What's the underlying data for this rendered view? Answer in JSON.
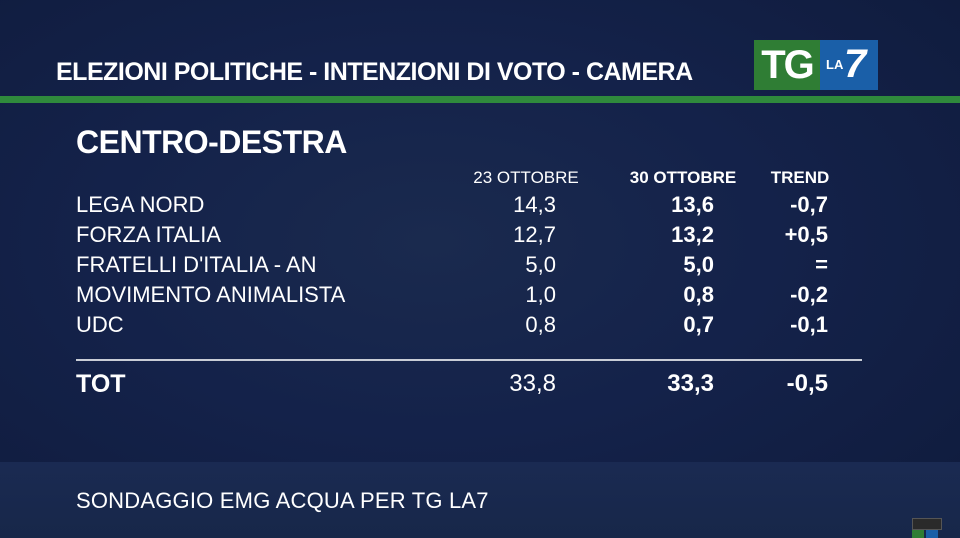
{
  "header": {
    "title": "ELEZIONI POLITICHE - INTENZIONI DI VOTO - CAMERA",
    "logo_tg": "TG",
    "logo_la": "LA",
    "logo_seven": "7"
  },
  "section_title": "CENTRO-DESTRA",
  "columns": {
    "date1": "23 OTTOBRE",
    "date2": "30 OTTOBRE",
    "trend": "TREND"
  },
  "rows": [
    {
      "party": "LEGA NORD",
      "v1": "14,3",
      "v2": "13,6",
      "trend": "-0,7"
    },
    {
      "party": "FORZA ITALIA",
      "v1": "12,7",
      "v2": "13,2",
      "trend": "+0,5"
    },
    {
      "party": "FRATELLI D'ITALIA - AN",
      "v1": "5,0",
      "v2": "5,0",
      "trend": "="
    },
    {
      "party": "MOVIMENTO ANIMALISTA",
      "v1": "1,0",
      "v2": "0,8",
      "trend": "-0,2"
    },
    {
      "party": "UDC",
      "v1": "0,8",
      "v2": "0,7",
      "trend": "-0,1"
    }
  ],
  "total": {
    "party": "TOT",
    "v1": "33,8",
    "v2": "33,3",
    "trend": "-0,5"
  },
  "footer": "SONDAGGIO EMG ACQUA PER TG LA7",
  "colors": {
    "background": "#14224a",
    "accent_green": "#2f8a3c",
    "logo_blue": "#1a5fa8"
  }
}
